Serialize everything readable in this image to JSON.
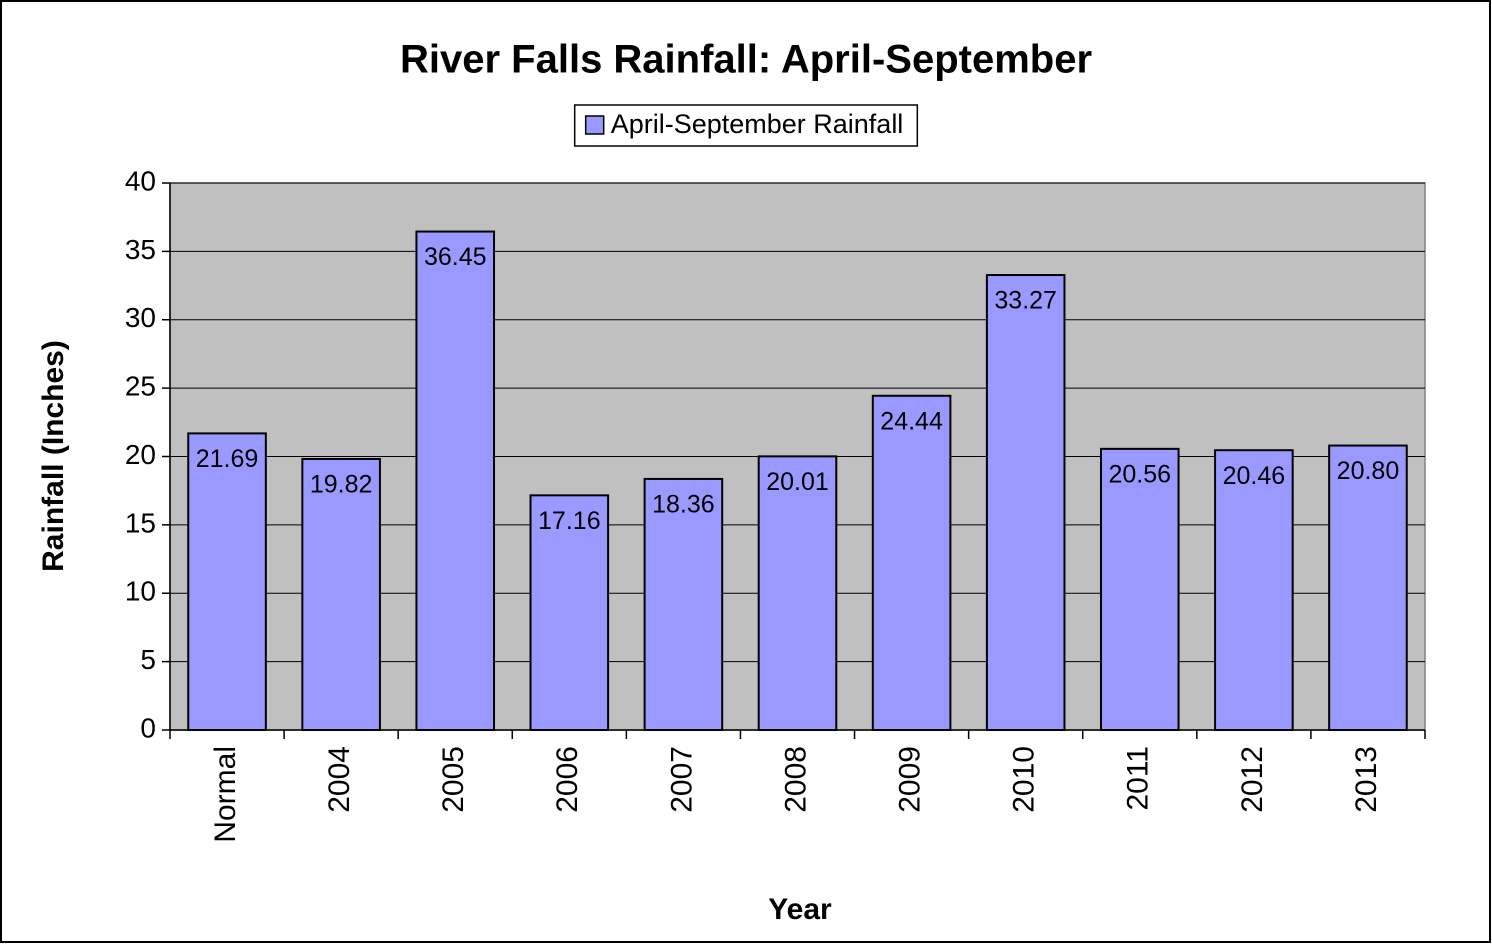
{
  "chart_data": {
    "type": "bar",
    "title": "River Falls Rainfall: April-September",
    "x_label": "Year",
    "y_label": "Rainfall (Inches)",
    "categories": [
      "Normal",
      "2004",
      "2005",
      "2006",
      "2007",
      "2008",
      "2009",
      "2010",
      "2011",
      "2012",
      "2013"
    ],
    "series": [
      {
        "name": "April-September Rainfall",
        "color": "#9999ff",
        "values": [
          21.69,
          19.82,
          36.45,
          17.16,
          18.36,
          20.01,
          24.44,
          33.27,
          20.56,
          20.46,
          20.8
        ],
        "value_labels": [
          "21.69",
          "19.82",
          "36.45",
          "17.16",
          "18.36",
          "20.01",
          "24.44",
          "33.27",
          "20.56",
          "20.46",
          "20.80"
        ]
      }
    ],
    "ylim": [
      0,
      40
    ],
    "yticks": [
      0,
      5,
      10,
      15,
      20,
      25,
      30,
      35,
      40
    ],
    "grid": true,
    "plot_background": "#c0c0c0",
    "legend": "top"
  }
}
